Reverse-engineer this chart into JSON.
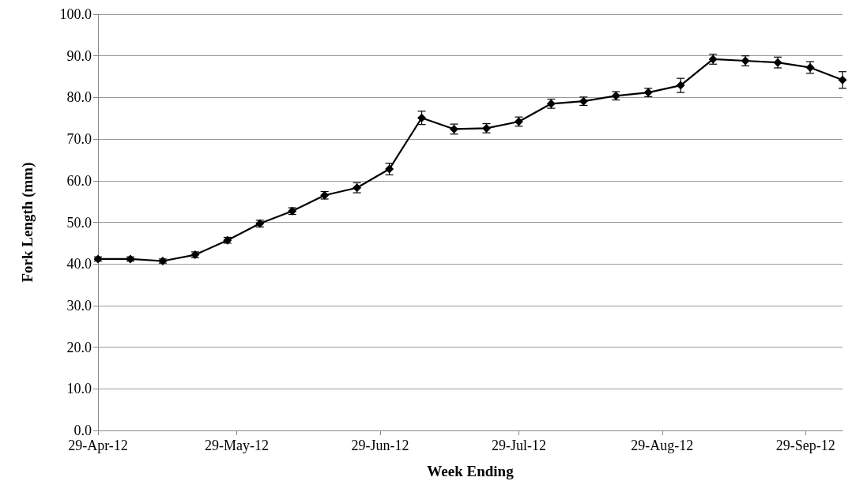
{
  "chart_data": {
    "type": "line",
    "xlabel": "Week Ending",
    "ylabel": "Fork Length (mm)",
    "x": [
      "2012-04-29",
      "2012-05-06",
      "2012-05-13",
      "2012-05-20",
      "2012-05-27",
      "2012-06-03",
      "2012-06-10",
      "2012-06-17",
      "2012-06-24",
      "2012-07-01",
      "2012-07-08",
      "2012-07-15",
      "2012-07-22",
      "2012-07-29",
      "2012-08-05",
      "2012-08-12",
      "2012-08-19",
      "2012-08-26",
      "2012-09-02",
      "2012-09-09",
      "2012-09-16",
      "2012-09-23",
      "2012-09-30",
      "2012-10-07"
    ],
    "series": [
      {
        "color": "#000000",
        "values": [
          41.2,
          41.2,
          40.7,
          42.2,
          45.7,
          49.7,
          52.7,
          56.5,
          58.3,
          62.8,
          75.1,
          72.4,
          72.6,
          74.2,
          78.5,
          79.1,
          80.4,
          81.2,
          82.9,
          89.2,
          88.8,
          88.4,
          87.2,
          84.2
        ],
        "errors": [
          0.5,
          0.5,
          0.5,
          0.7,
          0.7,
          0.8,
          0.8,
          0.9,
          1.2,
          1.4,
          1.6,
          1.2,
          1.1,
          1.1,
          1.1,
          1.0,
          1.0,
          1.0,
          1.7,
          1.2,
          1.2,
          1.3,
          1.4,
          2.0
        ]
      }
    ],
    "xlim": [
      "2012-04-29",
      "2012-10-07"
    ],
    "xticks": [
      {
        "value": "2012-04-29",
        "label": "29-Apr-12"
      },
      {
        "value": "2012-05-29",
        "label": "29-May-12"
      },
      {
        "value": "2012-06-29",
        "label": "29-Jun-12"
      },
      {
        "value": "2012-07-29",
        "label": "29-Jul-12"
      },
      {
        "value": "2012-08-29",
        "label": "29-Aug-12"
      },
      {
        "value": "2012-09-29",
        "label": "29-Sep-12"
      }
    ],
    "ylim": [
      0,
      100
    ],
    "yticks": [
      {
        "value": 0,
        "label": "0.0"
      },
      {
        "value": 10,
        "label": "10.0"
      },
      {
        "value": 20,
        "label": "20.0"
      },
      {
        "value": 30,
        "label": "30.0"
      },
      {
        "value": 40,
        "label": "40.0"
      },
      {
        "value": 50,
        "label": "50.0"
      },
      {
        "value": 60,
        "label": "60.0"
      },
      {
        "value": 70,
        "label": "70.0"
      },
      {
        "value": 80,
        "label": "80.0"
      },
      {
        "value": 90,
        "label": "90.0"
      },
      {
        "value": 100,
        "label": "100.0"
      }
    ],
    "grid": "y",
    "marker": "diamond",
    "line_style": "solid"
  }
}
